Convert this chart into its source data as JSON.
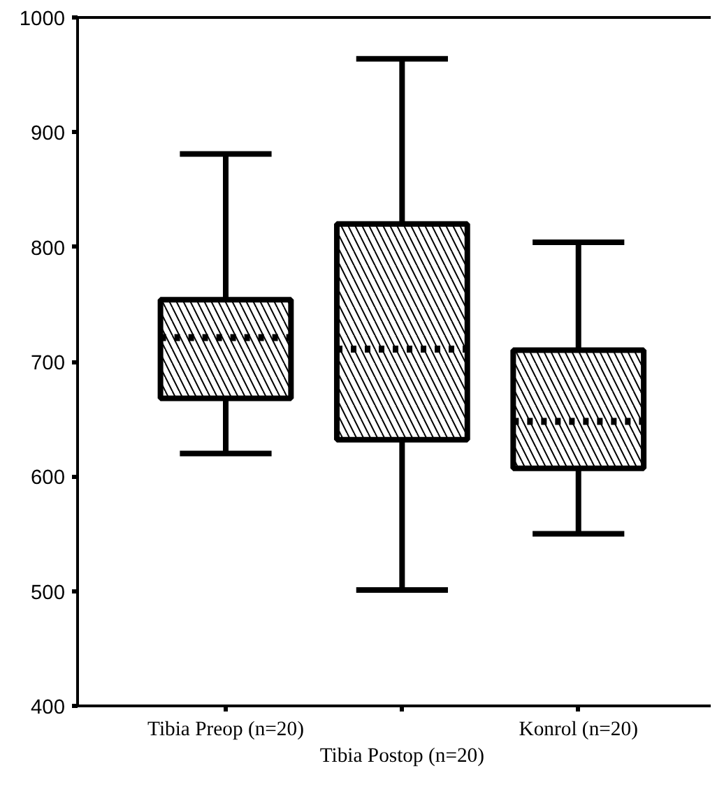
{
  "chart_data": {
    "type": "box",
    "categories": [
      "Tibia Preop (n=20)",
      "Tibia Postop (n=20)",
      "Konrol (n=20)"
    ],
    "boxes": [
      {
        "low": 620,
        "q1": 668,
        "median": 721,
        "q3": 754,
        "high": 881
      },
      {
        "low": 501,
        "q1": 632,
        "median": 711,
        "q3": 820,
        "high": 964
      },
      {
        "low": 550,
        "q1": 607,
        "median": 648,
        "q3": 710,
        "high": 804
      }
    ],
    "color": "#ffffff",
    "ylim": [
      400,
      1000
    ],
    "yticks": [
      400,
      500,
      600,
      700,
      800,
      900,
      1000
    ],
    "grid": false
  }
}
